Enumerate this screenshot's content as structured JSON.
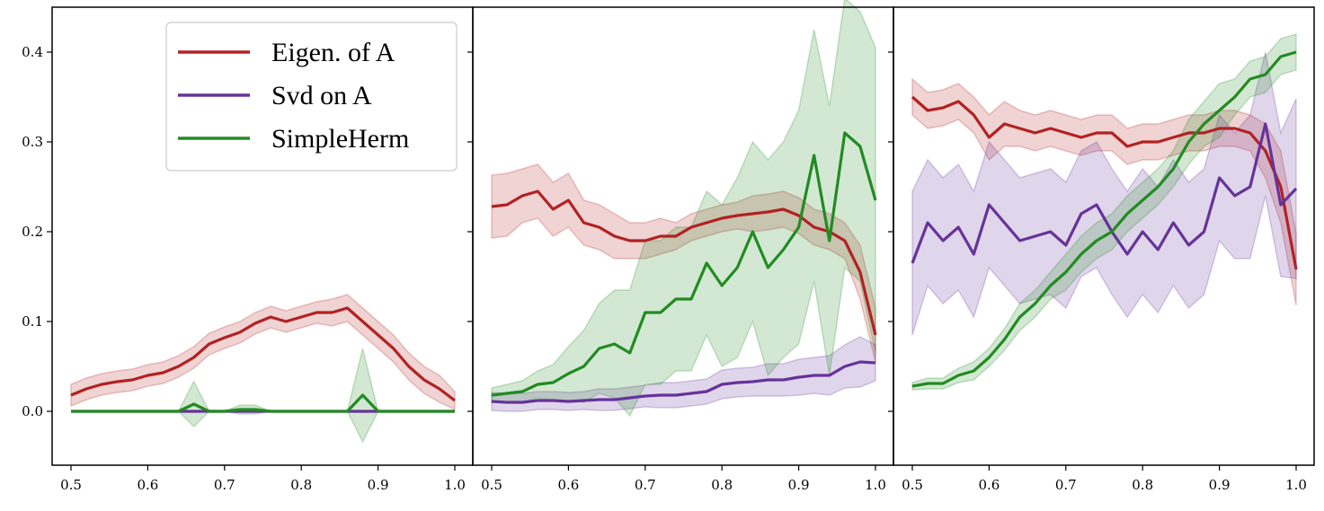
{
  "chart_data": {
    "type": "line",
    "x": [
      0.5,
      0.52,
      0.54,
      0.56,
      0.58,
      0.6,
      0.62,
      0.64,
      0.66,
      0.68,
      0.7,
      0.72,
      0.74,
      0.76,
      0.78,
      0.8,
      0.82,
      0.84,
      0.86,
      0.88,
      0.9,
      0.92,
      0.94,
      0.96,
      0.98,
      1.0
    ],
    "ylim": [
      -0.06,
      0.45
    ],
    "xlim": [
      0.48,
      1.01
    ],
    "yticks": [
      "0.0",
      "0.1",
      "0.2",
      "0.3",
      "0.4"
    ],
    "ytick_values": [
      0,
      0.1,
      0.2,
      0.3,
      0.4
    ],
    "xticks": [
      "0.5",
      "0.6",
      "0.7",
      "0.8",
      "0.9",
      "1.0"
    ],
    "xtick_values": [
      0.5,
      0.6,
      0.7,
      0.8,
      0.9,
      1.0
    ],
    "legend": {
      "placement": "top-right of first panel",
      "entries": [
        {
          "label": "Eigen. of A",
          "color": "#b22222"
        },
        {
          "label": "Svd on A",
          "color": "#663399"
        },
        {
          "label": "SimpleHerm",
          "color": "#228b22"
        }
      ]
    },
    "panels": [
      {
        "series": [
          {
            "name": "Eigen. of A",
            "color": "#b22222",
            "values": [
              0.018,
              0.025,
              0.03,
              0.033,
              0.035,
              0.04,
              0.043,
              0.05,
              0.06,
              0.075,
              0.082,
              0.088,
              0.098,
              0.105,
              0.1,
              0.105,
              0.11,
              0.11,
              0.115,
              0.1,
              0.085,
              0.07,
              0.05,
              0.035,
              0.025,
              0.012
            ],
            "band": [
              0.012,
              0.012,
              0.012,
              0.012,
              0.012,
              0.012,
              0.012,
              0.012,
              0.012,
              0.012,
              0.012,
              0.012,
              0.012,
              0.012,
              0.012,
              0.012,
              0.012,
              0.015,
              0.015,
              0.015,
              0.015,
              0.015,
              0.015,
              0.015,
              0.015,
              0.01
            ]
          },
          {
            "name": "Svd on A",
            "color": "#663399",
            "values": [
              0,
              0,
              0,
              0,
              0,
              0,
              0,
              0,
              0,
              0,
              0,
              0,
              0,
              0,
              0,
              0,
              0,
              0,
              0,
              0,
              0,
              0,
              0,
              0,
              0,
              0
            ],
            "band": [
              0,
              0,
              0,
              0,
              0,
              0,
              0,
              0,
              0,
              0,
              0,
              0,
              0,
              0,
              0,
              0,
              0,
              0,
              0,
              0,
              0,
              0,
              0,
              0,
              0,
              0
            ]
          },
          {
            "name": "SimpleHerm",
            "color": "#228b22",
            "values": [
              0,
              0,
              0,
              0,
              0,
              0,
              0,
              0,
              0.008,
              0,
              0,
              0.002,
              0.002,
              0,
              0,
              0,
              0,
              0,
              0,
              0.018,
              0,
              0,
              0,
              0,
              0,
              0
            ],
            "band": [
              0,
              0,
              0,
              0,
              0,
              0,
              0,
              0,
              0.025,
              0,
              0,
              0.005,
              0.005,
              0,
              0,
              0,
              0,
              0,
              0,
              0.052,
              0,
              0,
              0,
              0,
              0,
              0
            ]
          }
        ]
      },
      {
        "series": [
          {
            "name": "Eigen. of A",
            "color": "#b22222",
            "values": [
              0.228,
              0.23,
              0.24,
              0.245,
              0.225,
              0.235,
              0.21,
              0.205,
              0.195,
              0.19,
              0.19,
              0.195,
              0.195,
              0.205,
              0.21,
              0.215,
              0.218,
              0.22,
              0.222,
              0.225,
              0.218,
              0.205,
              0.2,
              0.19,
              0.155,
              0.085
            ],
            "band": [
              0.035,
              0.035,
              0.03,
              0.03,
              0.03,
              0.03,
              0.025,
              0.025,
              0.025,
              0.02,
              0.02,
              0.02,
              0.015,
              0.015,
              0.015,
              0.015,
              0.015,
              0.02,
              0.02,
              0.02,
              0.02,
              0.02,
              0.02,
              0.02,
              0.03,
              0.03
            ]
          },
          {
            "name": "Svd on A",
            "color": "#663399",
            "values": [
              0.011,
              0.01,
              0.01,
              0.012,
              0.012,
              0.011,
              0.012,
              0.013,
              0.013,
              0.015,
              0.017,
              0.018,
              0.018,
              0.02,
              0.022,
              0.03,
              0.032,
              0.033,
              0.035,
              0.035,
              0.038,
              0.04,
              0.04,
              0.05,
              0.055,
              0.054
            ],
            "band": [
              0.01,
              0.01,
              0.01,
              0.01,
              0.01,
              0.01,
              0.01,
              0.012,
              0.012,
              0.012,
              0.012,
              0.014,
              0.014,
              0.014,
              0.014,
              0.016,
              0.016,
              0.016,
              0.018,
              0.018,
              0.02,
              0.02,
              0.022,
              0.024,
              0.028,
              0.02
            ]
          },
          {
            "name": "SimpleHerm",
            "color": "#228b22",
            "values": [
              0.018,
              0.02,
              0.022,
              0.03,
              0.032,
              0.042,
              0.05,
              0.07,
              0.075,
              0.065,
              0.11,
              0.11,
              0.125,
              0.125,
              0.165,
              0.14,
              0.16,
              0.2,
              0.16,
              0.18,
              0.205,
              0.285,
              0.19,
              0.31,
              0.295,
              0.235
            ],
            "band": [
              0.008,
              0.01,
              0.012,
              0.015,
              0.02,
              0.03,
              0.04,
              0.05,
              0.06,
              0.07,
              0.08,
              0.08,
              0.08,
              0.08,
              0.08,
              0.09,
              0.1,
              0.1,
              0.12,
              0.12,
              0.13,
              0.14,
              0.15,
              0.15,
              0.15,
              0.17
            ]
          }
        ]
      },
      {
        "series": [
          {
            "name": "Eigen. of A",
            "color": "#b22222",
            "values": [
              0.35,
              0.335,
              0.338,
              0.345,
              0.33,
              0.305,
              0.32,
              0.315,
              0.31,
              0.315,
              0.31,
              0.305,
              0.31,
              0.31,
              0.295,
              0.3,
              0.3,
              0.305,
              0.31,
              0.31,
              0.315,
              0.315,
              0.31,
              0.29,
              0.25,
              0.158
            ],
            "band": [
              0.02,
              0.02,
              0.02,
              0.02,
              0.02,
              0.025,
              0.025,
              0.02,
              0.02,
              0.02,
              0.02,
              0.02,
              0.02,
              0.02,
              0.02,
              0.02,
              0.02,
              0.02,
              0.02,
              0.02,
              0.02,
              0.02,
              0.02,
              0.03,
              0.04,
              0.04
            ]
          },
          {
            "name": "Svd on A",
            "color": "#663399",
            "values": [
              0.165,
              0.21,
              0.19,
              0.205,
              0.175,
              0.23,
              0.21,
              0.19,
              0.195,
              0.2,
              0.185,
              0.22,
              0.23,
              0.2,
              0.175,
              0.2,
              0.18,
              0.21,
              0.185,
              0.2,
              0.26,
              0.24,
              0.25,
              0.32,
              0.23,
              0.248
            ],
            "band": [
              0.08,
              0.07,
              0.07,
              0.07,
              0.07,
              0.07,
              0.07,
              0.07,
              0.07,
              0.07,
              0.07,
              0.07,
              0.07,
              0.07,
              0.07,
              0.07,
              0.07,
              0.07,
              0.07,
              0.07,
              0.07,
              0.07,
              0.08,
              0.08,
              0.08,
              0.1
            ]
          },
          {
            "name": "SimpleHerm",
            "color": "#228b22",
            "values": [
              0.028,
              0.031,
              0.031,
              0.04,
              0.045,
              0.06,
              0.08,
              0.105,
              0.12,
              0.14,
              0.155,
              0.175,
              0.19,
              0.2,
              0.22,
              0.235,
              0.25,
              0.27,
              0.3,
              0.32,
              0.335,
              0.35,
              0.37,
              0.375,
              0.395,
              0.4
            ],
            "band": [
              0.004,
              0.006,
              0.006,
              0.008,
              0.01,
              0.01,
              0.012,
              0.015,
              0.015,
              0.015,
              0.02,
              0.02,
              0.02,
              0.02,
              0.02,
              0.02,
              0.02,
              0.02,
              0.025,
              0.025,
              0.03,
              0.02,
              0.02,
              0.02,
              0.02,
              0.02
            ]
          }
        ]
      }
    ]
  }
}
